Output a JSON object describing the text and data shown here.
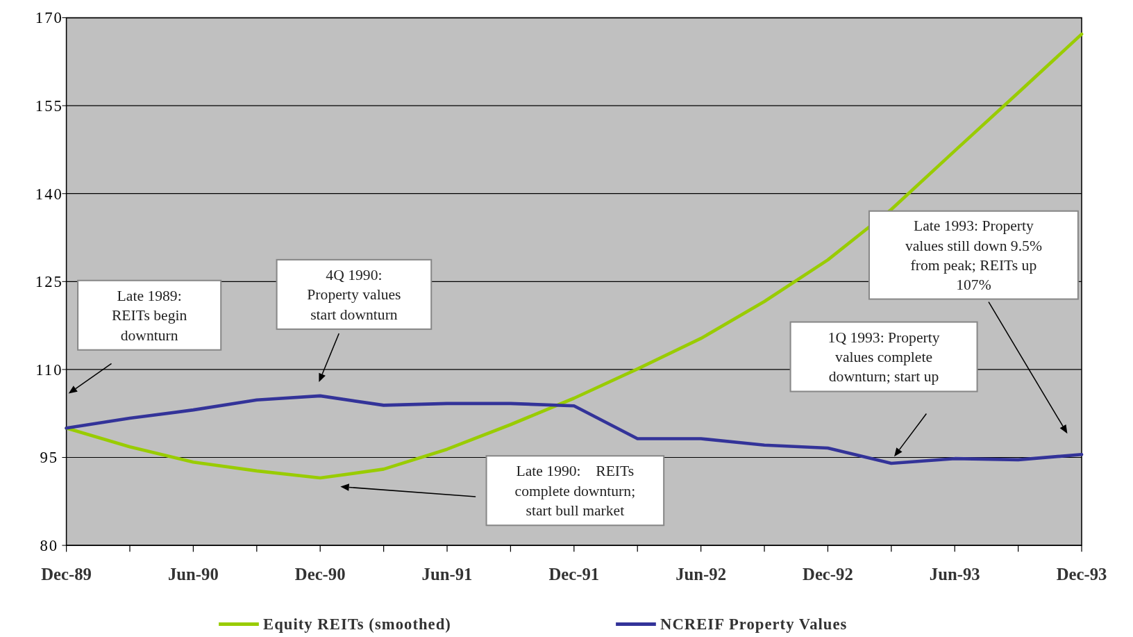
{
  "chart_data": {
    "type": "line",
    "categories": [
      "Dec-89",
      null,
      "Jun-90",
      null,
      "Dec-90",
      null,
      "Jun-91",
      null,
      "Dec-91",
      null,
      "Jun-92",
      null,
      "Dec-92",
      null,
      "Jun-93",
      null,
      "Dec-93"
    ],
    "series": [
      {
        "name": "Equity REITs (smoothed)",
        "color": "#99cc00",
        "values": [
          100,
          96.8,
          94.2,
          92.7,
          91.5,
          93,
          96.4,
          100.6,
          105.1,
          110.1,
          115.3,
          121.6,
          128.7,
          137.3,
          147.3,
          157.2,
          167.2
        ]
      },
      {
        "name": "NCREIF Property Values",
        "color": "#333399",
        "values": [
          100,
          101.7,
          103.1,
          104.8,
          105.5,
          103.9,
          104.2,
          104.2,
          103.8,
          98.2,
          98.2,
          97.1,
          96.6,
          94,
          94.8,
          94.6,
          95.5
        ]
      }
    ],
    "ylim": [
      80,
      170
    ],
    "yticks": [
      80,
      95,
      110,
      125,
      140,
      155,
      170
    ],
    "grid": "y",
    "legend": "bottom",
    "marker": "none",
    "line_style": "solid",
    "annotations": [
      "Late 1989:\nREITs begin\ndownturn",
      "4Q 1990:\nProperty values\nstart downturn",
      "Late 1990:    REITs\ncomplete downturn;\nstart bull market",
      "1Q 1993: Property\nvalues complete\ndownturn; start up",
      "Late 1993: Property\nvalues still down 9.5%\nfrom peak; REITs up\n107%"
    ]
  }
}
